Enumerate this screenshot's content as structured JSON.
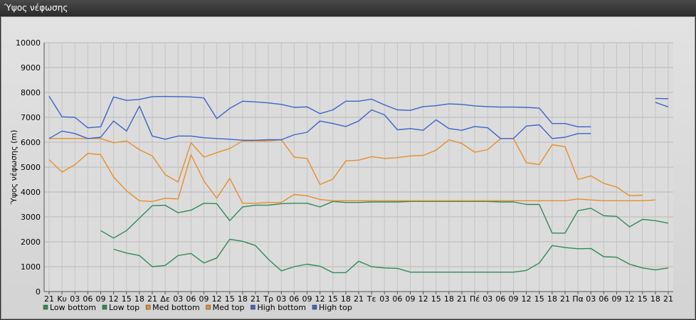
{
  "window": {
    "title": "Ύψος νέφωσης"
  },
  "chart_data": {
    "type": "line",
    "ylabel": "Ύψος νέφωσης (m)",
    "ylim": [
      0,
      10000
    ],
    "yticks": [
      0,
      1000,
      2000,
      3000,
      4000,
      5000,
      6000,
      7000,
      8000,
      9000,
      10000
    ],
    "grid": true,
    "legend_position": "bottom-left",
    "categories": [
      "21",
      "Κυ",
      "03",
      "06",
      "09",
      "12",
      "15",
      "18",
      "21",
      "Δε",
      "03",
      "06",
      "09",
      "12",
      "15",
      "18",
      "21",
      "Τρ",
      "03",
      "06",
      "09",
      "12",
      "15",
      "18",
      "21",
      "Τε",
      "03",
      "06",
      "09",
      "12",
      "15",
      "18",
      "21",
      "Πέ",
      "03",
      "06",
      "09",
      "12",
      "15",
      "18",
      "21",
      "Πα",
      "03",
      "06",
      "09",
      "12",
      "15",
      "18",
      "21"
    ],
    "series": [
      {
        "name": "Low bottom",
        "color": "#2e8b57",
        "values": [
          null,
          null,
          null,
          null,
          null,
          1700,
          1550,
          1450,
          1000,
          1050,
          1450,
          1530,
          1150,
          1350,
          2100,
          2020,
          1850,
          1300,
          830,
          1000,
          1100,
          1020,
          760,
          760,
          1220,
          1000,
          950,
          930,
          780,
          780,
          780,
          780,
          780,
          780,
          780,
          780,
          780,
          850,
          1150,
          1850,
          1770,
          1720,
          1730,
          1400,
          1380,
          1100,
          950,
          870,
          950
        ]
      },
      {
        "name": "Low top",
        "color": "#2e8b57",
        "values": [
          null,
          null,
          null,
          null,
          2450,
          2150,
          2450,
          2950,
          3450,
          3470,
          3170,
          3270,
          3550,
          3530,
          2850,
          3400,
          3470,
          3470,
          3530,
          3550,
          3550,
          3400,
          3620,
          3580,
          3580,
          3600,
          3600,
          3600,
          3620,
          3620,
          3620,
          3620,
          3620,
          3620,
          3620,
          3600,
          3600,
          3500,
          3500,
          2350,
          2350,
          3250,
          3350,
          3050,
          3020,
          2600,
          2900,
          2850,
          2750
        ]
      },
      {
        "name": "Med bottom",
        "color": "#e58e2c",
        "values": [
          5300,
          4800,
          5100,
          5550,
          5500,
          4600,
          4050,
          3650,
          3620,
          3750,
          3720,
          5500,
          4450,
          3750,
          4550,
          3550,
          3550,
          3580,
          3580,
          3900,
          3850,
          3700,
          3650,
          3650,
          3650,
          3650,
          3650,
          3650,
          3650,
          3650,
          3650,
          3650,
          3650,
          3650,
          3650,
          3650,
          3650,
          3650,
          3650,
          3650,
          3650,
          3720,
          3680,
          3650,
          3650,
          3650,
          3650,
          3680,
          null
        ]
      },
      {
        "name": "Med top",
        "color": "#e58e2c",
        "values": [
          6150,
          6150,
          6150,
          6150,
          6150,
          5980,
          6050,
          5700,
          5450,
          4700,
          4400,
          5980,
          5400,
          5580,
          5750,
          6050,
          6050,
          6050,
          6100,
          5400,
          5350,
          4300,
          4520,
          5250,
          5280,
          5420,
          5350,
          5380,
          5450,
          5470,
          5680,
          6100,
          5950,
          5600,
          5700,
          6150,
          6150,
          5180,
          5100,
          5900,
          5820,
          4500,
          4650,
          4350,
          4200,
          3850,
          3870,
          null,
          null
        ]
      },
      {
        "name": "High bottom",
        "color": "#3f63c9",
        "values": [
          6150,
          6450,
          6350,
          6150,
          6200,
          6850,
          6450,
          7450,
          6250,
          6120,
          6250,
          6250,
          6180,
          6150,
          6120,
          6080,
          6080,
          6100,
          6100,
          6300,
          6400,
          6850,
          6750,
          6630,
          6850,
          7300,
          7100,
          6500,
          6550,
          6480,
          6900,
          6550,
          6480,
          6630,
          6580,
          6150,
          6150,
          6650,
          6700,
          6150,
          6200,
          6350,
          6350,
          null,
          null,
          null,
          null,
          7600,
          7420
        ]
      },
      {
        "name": "High top",
        "color": "#3f63c9",
        "values": [
          7850,
          7020,
          7000,
          6580,
          6620,
          7820,
          7680,
          7720,
          7830,
          7840,
          7830,
          7820,
          7780,
          6950,
          7360,
          7650,
          7620,
          7580,
          7520,
          7400,
          7420,
          7150,
          7300,
          7650,
          7650,
          7730,
          7500,
          7300,
          7280,
          7430,
          7470,
          7540,
          7520,
          7460,
          7430,
          7410,
          7410,
          7400,
          7370,
          6750,
          6750,
          6620,
          6620,
          null,
          null,
          null,
          null,
          7760,
          7750
        ]
      }
    ]
  }
}
